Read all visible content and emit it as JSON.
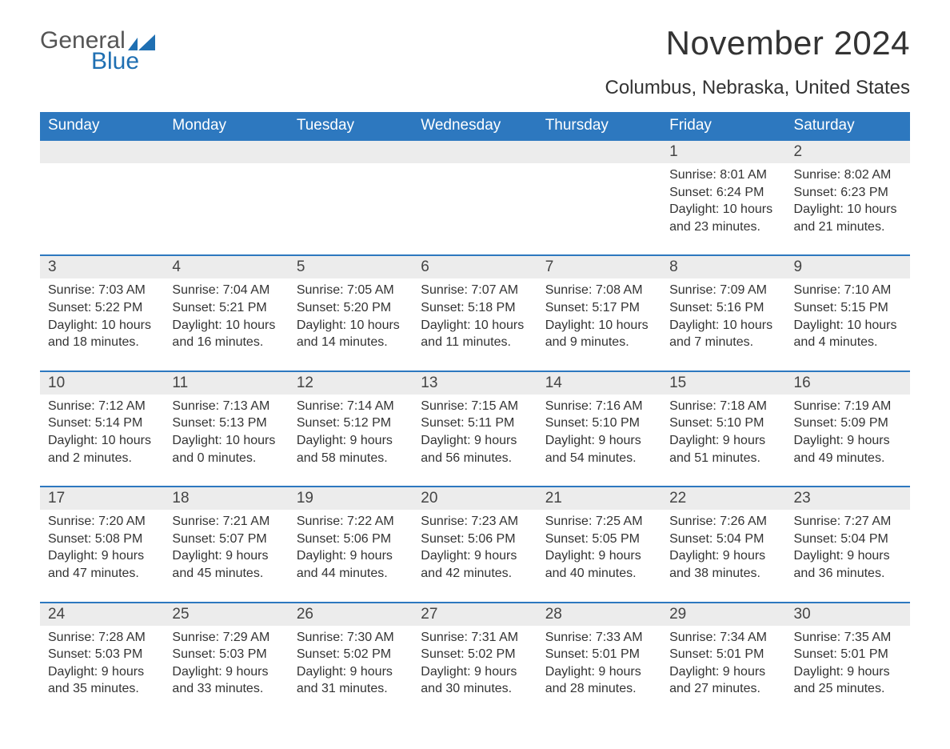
{
  "logo": {
    "text_top": "General",
    "text_bottom": "Blue",
    "icon_color": "#1f6fb2",
    "text_gray": "#555555"
  },
  "title": "November 2024",
  "location": "Columbus, Nebraska, United States",
  "colors": {
    "header_bg": "#2d78bf",
    "header_text": "#ffffff",
    "row_border": "#2d78bf",
    "daynum_bg": "#ececec",
    "body_text": "#333333"
  },
  "weekdays": [
    "Sunday",
    "Monday",
    "Tuesday",
    "Wednesday",
    "Thursday",
    "Friday",
    "Saturday"
  ],
  "labels": {
    "sunrise": "Sunrise:",
    "sunset": "Sunset:",
    "daylight": "Daylight:"
  },
  "weeks": [
    [
      null,
      null,
      null,
      null,
      null,
      {
        "n": "1",
        "sunrise": "8:01 AM",
        "sunset": "6:24 PM",
        "day": "10 hours and 23 minutes."
      },
      {
        "n": "2",
        "sunrise": "8:02 AM",
        "sunset": "6:23 PM",
        "day": "10 hours and 21 minutes."
      }
    ],
    [
      {
        "n": "3",
        "sunrise": "7:03 AM",
        "sunset": "5:22 PM",
        "day": "10 hours and 18 minutes."
      },
      {
        "n": "4",
        "sunrise": "7:04 AM",
        "sunset": "5:21 PM",
        "day": "10 hours and 16 minutes."
      },
      {
        "n": "5",
        "sunrise": "7:05 AM",
        "sunset": "5:20 PM",
        "day": "10 hours and 14 minutes."
      },
      {
        "n": "6",
        "sunrise": "7:07 AM",
        "sunset": "5:18 PM",
        "day": "10 hours and 11 minutes."
      },
      {
        "n": "7",
        "sunrise": "7:08 AM",
        "sunset": "5:17 PM",
        "day": "10 hours and 9 minutes."
      },
      {
        "n": "8",
        "sunrise": "7:09 AM",
        "sunset": "5:16 PM",
        "day": "10 hours and 7 minutes."
      },
      {
        "n": "9",
        "sunrise": "7:10 AM",
        "sunset": "5:15 PM",
        "day": "10 hours and 4 minutes."
      }
    ],
    [
      {
        "n": "10",
        "sunrise": "7:12 AM",
        "sunset": "5:14 PM",
        "day": "10 hours and 2 minutes."
      },
      {
        "n": "11",
        "sunrise": "7:13 AM",
        "sunset": "5:13 PM",
        "day": "10 hours and 0 minutes."
      },
      {
        "n": "12",
        "sunrise": "7:14 AM",
        "sunset": "5:12 PM",
        "day": "9 hours and 58 minutes."
      },
      {
        "n": "13",
        "sunrise": "7:15 AM",
        "sunset": "5:11 PM",
        "day": "9 hours and 56 minutes."
      },
      {
        "n": "14",
        "sunrise": "7:16 AM",
        "sunset": "5:10 PM",
        "day": "9 hours and 54 minutes."
      },
      {
        "n": "15",
        "sunrise": "7:18 AM",
        "sunset": "5:10 PM",
        "day": "9 hours and 51 minutes."
      },
      {
        "n": "16",
        "sunrise": "7:19 AM",
        "sunset": "5:09 PM",
        "day": "9 hours and 49 minutes."
      }
    ],
    [
      {
        "n": "17",
        "sunrise": "7:20 AM",
        "sunset": "5:08 PM",
        "day": "9 hours and 47 minutes."
      },
      {
        "n": "18",
        "sunrise": "7:21 AM",
        "sunset": "5:07 PM",
        "day": "9 hours and 45 minutes."
      },
      {
        "n": "19",
        "sunrise": "7:22 AM",
        "sunset": "5:06 PM",
        "day": "9 hours and 44 minutes."
      },
      {
        "n": "20",
        "sunrise": "7:23 AM",
        "sunset": "5:06 PM",
        "day": "9 hours and 42 minutes."
      },
      {
        "n": "21",
        "sunrise": "7:25 AM",
        "sunset": "5:05 PM",
        "day": "9 hours and 40 minutes."
      },
      {
        "n": "22",
        "sunrise": "7:26 AM",
        "sunset": "5:04 PM",
        "day": "9 hours and 38 minutes."
      },
      {
        "n": "23",
        "sunrise": "7:27 AM",
        "sunset": "5:04 PM",
        "day": "9 hours and 36 minutes."
      }
    ],
    [
      {
        "n": "24",
        "sunrise": "7:28 AM",
        "sunset": "5:03 PM",
        "day": "9 hours and 35 minutes."
      },
      {
        "n": "25",
        "sunrise": "7:29 AM",
        "sunset": "5:03 PM",
        "day": "9 hours and 33 minutes."
      },
      {
        "n": "26",
        "sunrise": "7:30 AM",
        "sunset": "5:02 PM",
        "day": "9 hours and 31 minutes."
      },
      {
        "n": "27",
        "sunrise": "7:31 AM",
        "sunset": "5:02 PM",
        "day": "9 hours and 30 minutes."
      },
      {
        "n": "28",
        "sunrise": "7:33 AM",
        "sunset": "5:01 PM",
        "day": "9 hours and 28 minutes."
      },
      {
        "n": "29",
        "sunrise": "7:34 AM",
        "sunset": "5:01 PM",
        "day": "9 hours and 27 minutes."
      },
      {
        "n": "30",
        "sunrise": "7:35 AM",
        "sunset": "5:01 PM",
        "day": "9 hours and 25 minutes."
      }
    ]
  ]
}
